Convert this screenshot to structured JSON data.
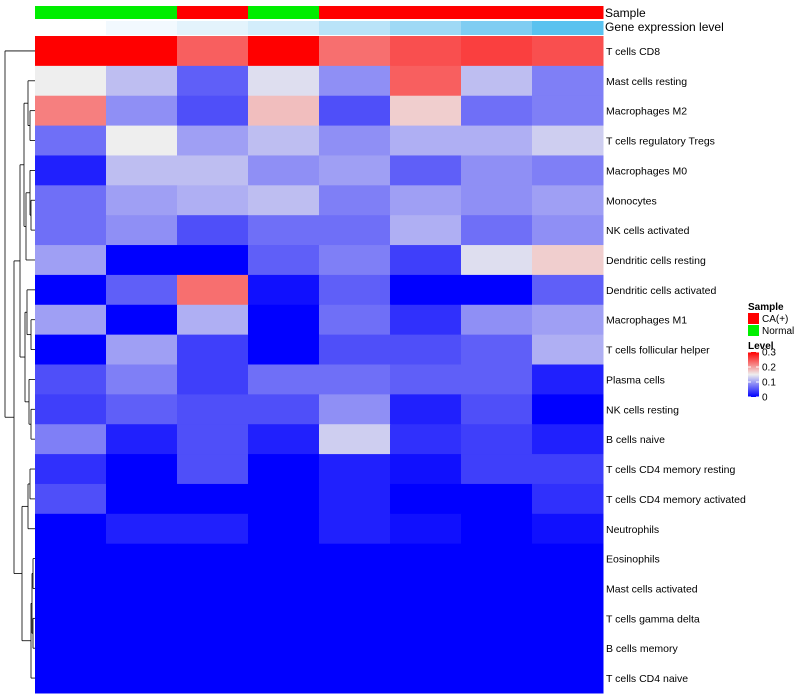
{
  "chart_data": {
    "type": "heatmap",
    "title": "",
    "rows": [
      "T cells CD8",
      "Mast cells resting",
      "Macrophages M2",
      "T cells regulatory  Tregs",
      "Macrophages M0",
      "Monocytes",
      "NK cells activated",
      "Dendritic cells resting",
      "Dendritic cells activated",
      "Macrophages M1",
      "T cells follicular helper",
      "Plasma cells",
      "NK cells resting",
      "B cells naive",
      "T cells CD4 memory resting",
      "T cells CD4 memory activated",
      "Neutrophils",
      "Eosinophils",
      "Mast cells activated",
      "T cells gamma delta",
      "B cells memory",
      "T cells CD4 naive"
    ],
    "columns": 8,
    "values": [
      [
        0.3,
        0.3,
        0.24,
        0.3,
        0.23,
        0.25,
        0.26,
        0.25
      ],
      [
        0.15,
        0.12,
        0.06,
        0.14,
        0.09,
        0.24,
        0.12,
        0.08
      ],
      [
        0.22,
        0.09,
        0.05,
        0.18,
        0.05,
        0.17,
        0.07,
        0.08
      ],
      [
        0.07,
        0.15,
        0.1,
        0.12,
        0.09,
        0.11,
        0.11,
        0.13
      ],
      [
        0.02,
        0.12,
        0.12,
        0.09,
        0.1,
        0.06,
        0.09,
        0.08
      ],
      [
        0.07,
        0.1,
        0.11,
        0.12,
        0.08,
        0.1,
        0.09,
        0.1
      ],
      [
        0.07,
        0.09,
        0.05,
        0.07,
        0.07,
        0.11,
        0.07,
        0.09
      ],
      [
        0.1,
        0.0,
        0.0,
        0.06,
        0.08,
        0.04,
        0.14,
        0.17
      ],
      [
        0.0,
        0.06,
        0.23,
        0.01,
        0.06,
        0.0,
        0.0,
        0.06
      ],
      [
        0.1,
        0.0,
        0.11,
        0.0,
        0.07,
        0.03,
        0.09,
        0.1
      ],
      [
        0.0,
        0.1,
        0.04,
        0.0,
        0.05,
        0.05,
        0.06,
        0.11
      ],
      [
        0.05,
        0.08,
        0.04,
        0.07,
        0.07,
        0.06,
        0.06,
        0.02
      ],
      [
        0.04,
        0.06,
        0.05,
        0.05,
        0.09,
        0.02,
        0.05,
        0.0
      ],
      [
        0.08,
        0.02,
        0.05,
        0.02,
        0.13,
        0.03,
        0.04,
        0.02
      ],
      [
        0.03,
        0.0,
        0.05,
        0.0,
        0.02,
        0.01,
        0.04,
        0.04
      ],
      [
        0.05,
        0.0,
        0.0,
        0.0,
        0.02,
        0.0,
        0.0,
        0.03
      ],
      [
        0.0,
        0.02,
        0.02,
        0.0,
        0.02,
        0.01,
        0.0,
        0.01
      ],
      [
        0.0,
        0.0,
        0.0,
        0.0,
        0.0,
        0.0,
        0.0,
        0.0
      ],
      [
        0.0,
        0.0,
        0.0,
        0.0,
        0.0,
        0.0,
        0.0,
        0.0
      ],
      [
        0.0,
        0.0,
        0.0,
        0.0,
        0.0,
        0.0,
        0.0,
        0.0
      ],
      [
        0.0,
        0.0,
        0.0,
        0.0,
        0.0,
        0.0,
        0.0,
        0.0
      ],
      [
        0.0,
        0.0,
        0.0,
        0.0,
        0.0,
        0.0,
        0.0,
        0.0
      ]
    ],
    "annotations": {
      "sample": {
        "label": "Sample",
        "values": [
          "Normal",
          "Normal",
          "CA(+)",
          "Normal",
          "CA(+)",
          "CA(+)",
          "CA(+)",
          "CA(+)"
        ]
      },
      "gene_expression": {
        "label": "Gene expression level",
        "colors": [
          "#ffffff",
          "#f2f9fe",
          "#e3f3fc",
          "#d3edfb",
          "#b9e3f8",
          "#9fd9f5",
          "#7fcdf2",
          "#5ac2ef"
        ]
      }
    },
    "color_scale": {
      "min": 0,
      "mid": 0.15,
      "max": 0.3,
      "low_color": "#0000ff",
      "mid_color": "#eeeeee",
      "high_color": "#ff0000"
    },
    "legend": {
      "sample_title": "Sample",
      "sample_items": [
        {
          "label": "CA(+)",
          "color": "#ff0000"
        },
        {
          "label": "Normal",
          "color": "#00ee00"
        }
      ],
      "level_title": "Level",
      "level_ticks": [
        "0.3",
        "0.2",
        "0.1",
        "0"
      ],
      "level_tick_values": [
        0.3,
        0.2,
        0.1,
        0
      ],
      "placement": "right"
    },
    "dendrogram": "row"
  }
}
